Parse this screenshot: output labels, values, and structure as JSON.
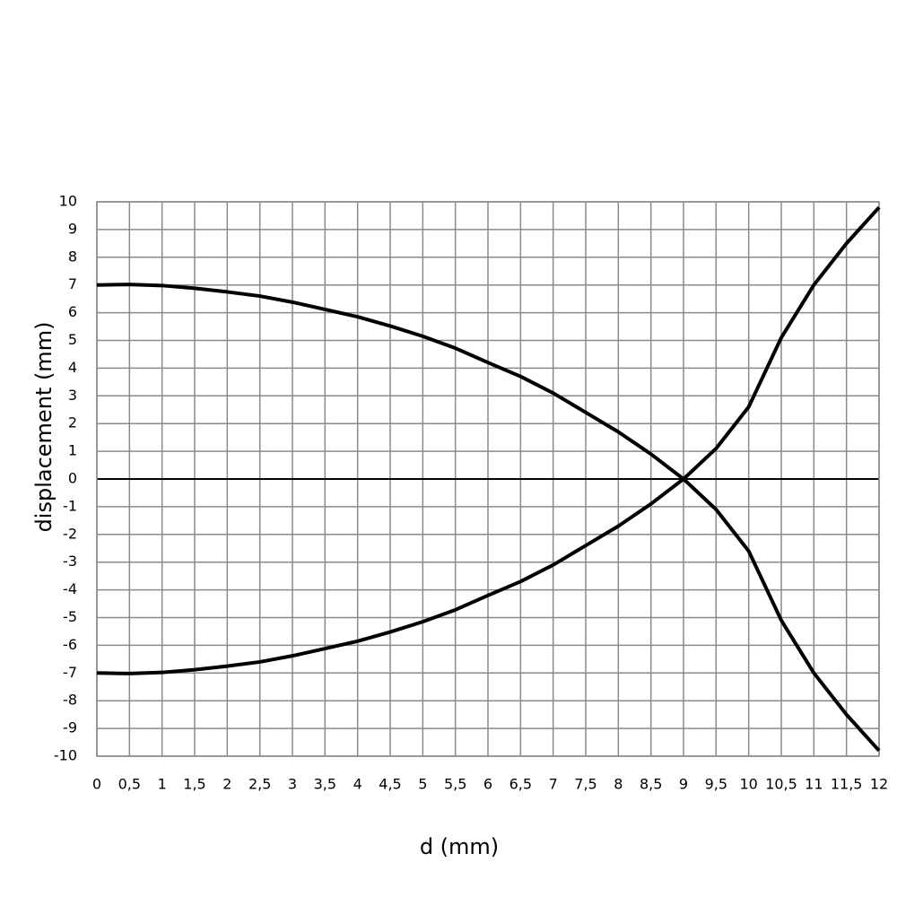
{
  "chart_data": {
    "type": "line",
    "xlabel": "d (mm)",
    "ylabel": "displacement (mm)",
    "x": [
      0,
      0.5,
      1,
      1.5,
      2,
      2.5,
      3,
      3.5,
      4,
      4.5,
      5,
      5.5,
      6,
      6.5,
      7,
      7.5,
      8,
      8.5,
      9,
      9.5,
      10,
      10.5,
      11,
      11.5,
      12
    ],
    "series": [
      {
        "color": "#000000",
        "values": [
          7.0,
          7.02,
          6.98,
          6.88,
          6.75,
          6.6,
          6.38,
          6.12,
          5.85,
          5.52,
          5.15,
          4.72,
          4.2,
          3.7,
          3.1,
          2.4,
          1.7,
          0.9,
          0,
          -1.1,
          -2.6,
          -5.1,
          -7.0,
          -8.5,
          -9.8
        ]
      },
      {
        "color": "#000000",
        "values": [
          -7.0,
          -7.02,
          -6.98,
          -6.88,
          -6.75,
          -6.6,
          -6.38,
          -6.12,
          -5.85,
          -5.52,
          -5.15,
          -4.72,
          -4.2,
          -3.7,
          -3.1,
          -2.4,
          -1.7,
          -0.9,
          0,
          1.1,
          2.6,
          5.1,
          7.0,
          8.5,
          9.8
        ]
      }
    ],
    "xlim": [
      0,
      12
    ],
    "xticks": [
      0,
      {
        "value": 0.5,
        "label": "0,5"
      },
      1,
      {
        "value": 1.5,
        "label": "1,5"
      },
      2,
      {
        "value": 2.5,
        "label": "2,5"
      },
      3,
      {
        "value": 3.5,
        "label": "3,5"
      },
      4,
      {
        "value": 4.5,
        "label": "4,5"
      },
      5,
      {
        "value": 5.5,
        "label": "5,5"
      },
      6,
      {
        "value": 6.5,
        "label": "6,5"
      },
      7,
      {
        "value": 7.5,
        "label": "7,5"
      },
      8,
      {
        "value": 8.5,
        "label": "8,5"
      },
      9,
      {
        "value": 9.5,
        "label": "9,5"
      },
      10,
      {
        "value": 10.5,
        "label": "10,5"
      },
      11,
      {
        "value": 11.5,
        "label": "11,5"
      },
      12
    ],
    "ylim": [
      -10,
      10
    ],
    "yticks": [
      -10,
      -9,
      -8,
      -7,
      -6,
      -5,
      -4,
      -3,
      -2,
      -1,
      0,
      1,
      2,
      3,
      4,
      5,
      6,
      7,
      8,
      9,
      10
    ],
    "grid": true
  }
}
